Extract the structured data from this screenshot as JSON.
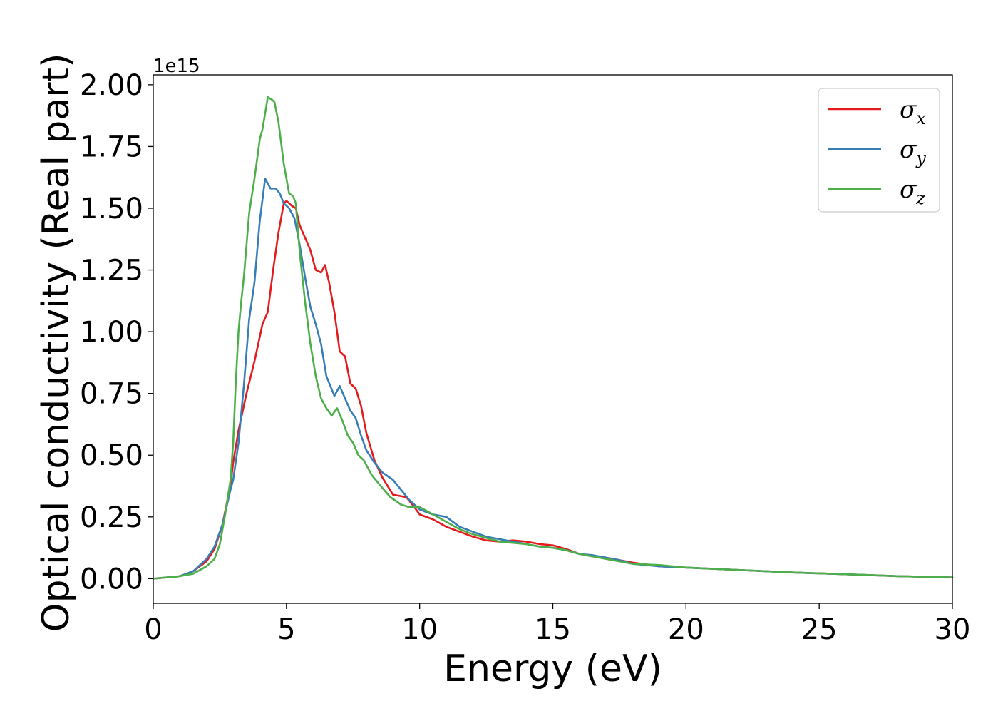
{
  "chart_data": {
    "type": "line",
    "xlabel": "Energy (eV)",
    "ylabel": "Optical conductivity (Real part)",
    "y_offset_text": "1e15",
    "xlim": [
      0,
      30
    ],
    "ylim": [
      -0.1,
      2.04
    ],
    "x_ticks": [
      0,
      5,
      10,
      15,
      20,
      25,
      30
    ],
    "x_tick_labels": [
      "0",
      "5",
      "10",
      "15",
      "20",
      "25",
      "30"
    ],
    "y_ticks": [
      0.0,
      0.25,
      0.5,
      0.75,
      1.0,
      1.25,
      1.5,
      1.75,
      2.0
    ],
    "y_tick_labels": [
      "0.00",
      "0.25",
      "0.50",
      "0.75",
      "1.00",
      "1.25",
      "1.50",
      "1.75",
      "2.00"
    ],
    "grid": false,
    "legend_position": "top-right",
    "series": [
      {
        "name": "σx",
        "legend_base": "σ",
        "legend_sub": "x",
        "color": "#e41a1c",
        "x": [
          0,
          1,
          1.5,
          2,
          2.3,
          2.6,
          2.9,
          3.0,
          3.2,
          3.5,
          3.8,
          4.0,
          4.1,
          4.3,
          4.5,
          4.7,
          4.9,
          5.0,
          5.2,
          5.35,
          5.5,
          5.7,
          5.9,
          6.1,
          6.3,
          6.45,
          6.6,
          6.8,
          7.0,
          7.2,
          7.4,
          7.6,
          7.8,
          8.0,
          8.3,
          8.6,
          9.0,
          9.5,
          9.8,
          10.0,
          10.5,
          11.0,
          11.5,
          12.0,
          12.5,
          13.0,
          13.5,
          14.0,
          14.5,
          15.0,
          15.5,
          16.0,
          16.5,
          17.0,
          17.5,
          18.0,
          19.0,
          20.0,
          22.0,
          24.0,
          26.0,
          28.0,
          30.0
        ],
        "y": [
          0.0,
          0.01,
          0.03,
          0.07,
          0.12,
          0.22,
          0.38,
          0.47,
          0.6,
          0.75,
          0.88,
          0.98,
          1.03,
          1.08,
          1.25,
          1.4,
          1.52,
          1.53,
          1.51,
          1.5,
          1.43,
          1.38,
          1.33,
          1.25,
          1.24,
          1.27,
          1.2,
          1.08,
          0.92,
          0.9,
          0.79,
          0.77,
          0.7,
          0.59,
          0.48,
          0.41,
          0.34,
          0.33,
          0.29,
          0.26,
          0.24,
          0.21,
          0.19,
          0.17,
          0.155,
          0.15,
          0.155,
          0.15,
          0.14,
          0.135,
          0.12,
          0.1,
          0.09,
          0.085,
          0.075,
          0.065,
          0.05,
          0.045,
          0.035,
          0.025,
          0.018,
          0.01,
          0.005
        ]
      },
      {
        "name": "σy",
        "legend_base": "σ",
        "legend_sub": "y",
        "color": "#377eb8",
        "x": [
          0,
          1,
          1.5,
          2,
          2.3,
          2.6,
          2.9,
          3.0,
          3.2,
          3.4,
          3.6,
          3.8,
          4.0,
          4.2,
          4.4,
          4.6,
          4.75,
          4.9,
          5.1,
          5.3,
          5.5,
          5.7,
          5.9,
          6.1,
          6.3,
          6.5,
          6.8,
          7.0,
          7.2,
          7.4,
          7.6,
          7.8,
          8.0,
          8.3,
          8.6,
          9.0,
          9.3,
          9.6,
          10.0,
          10.5,
          11.0,
          11.5,
          12.0,
          12.5,
          13.0,
          13.5,
          14.0,
          14.5,
          15.0,
          15.5,
          16.0,
          16.5,
          17.0,
          17.5,
          18.0,
          19.0,
          20.0,
          22.0,
          24.0,
          26.0,
          28.0,
          30.0
        ],
        "y": [
          0.0,
          0.01,
          0.03,
          0.08,
          0.13,
          0.22,
          0.36,
          0.4,
          0.55,
          0.78,
          1.05,
          1.2,
          1.45,
          1.62,
          1.58,
          1.58,
          1.56,
          1.52,
          1.5,
          1.46,
          1.35,
          1.22,
          1.1,
          1.03,
          0.95,
          0.82,
          0.74,
          0.78,
          0.73,
          0.68,
          0.65,
          0.58,
          0.52,
          0.47,
          0.43,
          0.4,
          0.36,
          0.32,
          0.28,
          0.26,
          0.25,
          0.21,
          0.19,
          0.17,
          0.16,
          0.15,
          0.14,
          0.13,
          0.125,
          0.115,
          0.1,
          0.095,
          0.085,
          0.075,
          0.06,
          0.05,
          0.045,
          0.035,
          0.025,
          0.018,
          0.01,
          0.005
        ]
      },
      {
        "name": "σz",
        "legend_base": "σ",
        "legend_sub": "z",
        "color": "#4daf4a",
        "x": [
          0,
          1,
          1.5,
          2,
          2.3,
          2.5,
          2.7,
          2.9,
          3.0,
          3.1,
          3.2,
          3.3,
          3.4,
          3.6,
          3.8,
          4.0,
          4.1,
          4.3,
          4.45,
          4.55,
          4.7,
          4.9,
          5.1,
          5.25,
          5.35,
          5.5,
          5.7,
          5.9,
          6.1,
          6.3,
          6.5,
          6.7,
          6.9,
          7.1,
          7.3,
          7.5,
          7.7,
          7.9,
          8.2,
          8.5,
          8.9,
          9.3,
          9.6,
          10.0,
          10.5,
          11.0,
          11.5,
          12.0,
          12.5,
          13.0,
          13.5,
          14.0,
          14.5,
          15.0,
          15.5,
          16.0,
          16.5,
          17.0,
          17.5,
          18.0,
          19.0,
          20.0,
          22.0,
          24.0,
          26.0,
          28.0,
          30.0
        ],
        "y": [
          0.0,
          0.01,
          0.02,
          0.05,
          0.08,
          0.14,
          0.26,
          0.4,
          0.55,
          0.8,
          1.0,
          1.12,
          1.22,
          1.48,
          1.62,
          1.78,
          1.82,
          1.95,
          1.94,
          1.93,
          1.85,
          1.68,
          1.56,
          1.55,
          1.52,
          1.32,
          1.12,
          0.95,
          0.82,
          0.73,
          0.69,
          0.66,
          0.69,
          0.64,
          0.58,
          0.55,
          0.5,
          0.48,
          0.42,
          0.38,
          0.33,
          0.3,
          0.29,
          0.29,
          0.26,
          0.23,
          0.2,
          0.18,
          0.165,
          0.15,
          0.145,
          0.14,
          0.13,
          0.125,
          0.115,
          0.1,
          0.09,
          0.08,
          0.07,
          0.06,
          0.055,
          0.045,
          0.035,
          0.025,
          0.018,
          0.01,
          0.005
        ]
      }
    ]
  }
}
